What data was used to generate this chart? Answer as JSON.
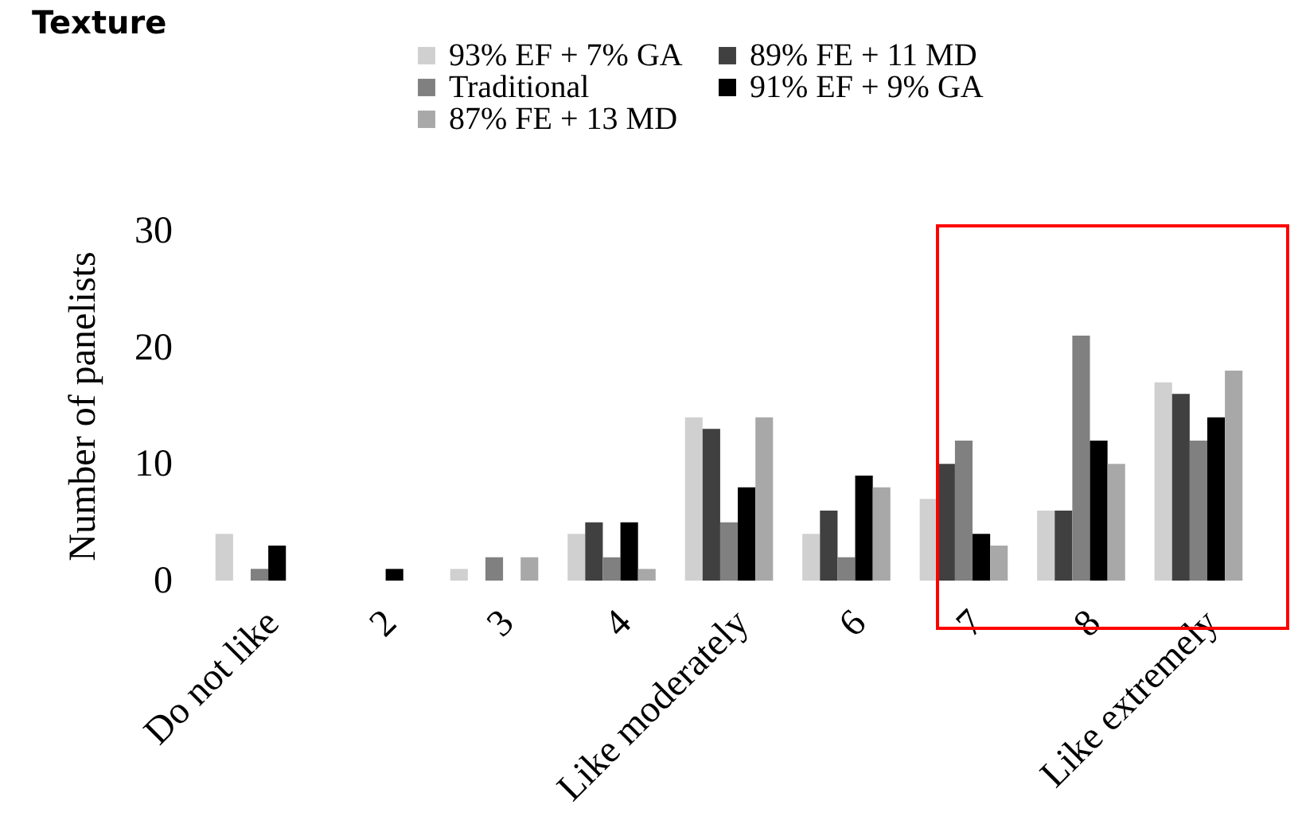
{
  "chart_data": {
    "type": "bar",
    "title": "Texture",
    "ylabel": "Number of panelists",
    "categories": [
      "Do not like",
      "2",
      "3",
      "4",
      "Like moderately",
      "6",
      "7",
      "8",
      "Like extremely"
    ],
    "series": [
      {
        "name": "93% EF + 7% GA",
        "color": "#d0d0d0",
        "values": [
          4,
          0,
          1,
          4,
          14,
          4,
          7,
          6,
          17
        ]
      },
      {
        "name": "89% FE + 11 MD",
        "color": "#404040",
        "values": [
          0,
          0,
          0,
          5,
          13,
          6,
          10,
          6,
          16
        ]
      },
      {
        "name": "Traditional",
        "color": "#808080",
        "values": [
          1,
          0,
          2,
          2,
          5,
          2,
          12,
          21,
          12
        ]
      },
      {
        "name": "91% EF + 9% GA",
        "color": "#000000",
        "values": [
          3,
          1,
          0,
          5,
          8,
          9,
          4,
          12,
          14
        ]
      },
      {
        "name": "87% FE + 13 MD",
        "color": "#a8a8a8",
        "values": [
          0,
          0,
          2,
          1,
          14,
          8,
          3,
          10,
          18
        ]
      }
    ],
    "ylim": [
      0,
      30
    ],
    "yticks": [
      0,
      10,
      20,
      30
    ],
    "grid": false,
    "legend": "top"
  }
}
